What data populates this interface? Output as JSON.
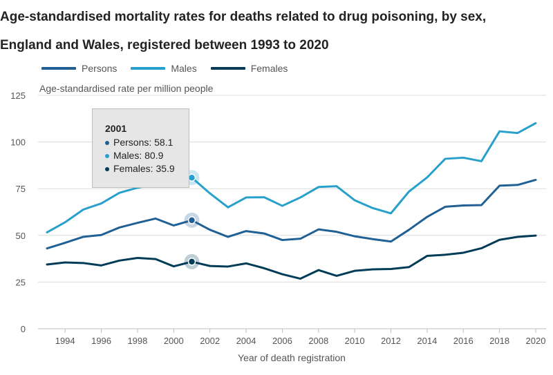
{
  "chart_data": {
    "type": "line",
    "title": "Age-standardised mortality rates for deaths related to drug poisoning, by sex, England and Wales, registered between 1993 to 2020",
    "ylabel": "Age-standardised rate per million people",
    "xlabel": "Year of death registration",
    "x": [
      1993,
      1994,
      1995,
      1996,
      1997,
      1998,
      1999,
      2000,
      2001,
      2002,
      2003,
      2004,
      2005,
      2006,
      2007,
      2008,
      2009,
      2010,
      2011,
      2012,
      2013,
      2014,
      2015,
      2016,
      2017,
      2018,
      2019,
      2020
    ],
    "xticks": [
      "1994",
      "1996",
      "1998",
      "2000",
      "2002",
      "2004",
      "2006",
      "2008",
      "2010",
      "2012",
      "2014",
      "2016",
      "2018",
      "2020"
    ],
    "yticks": [
      "0",
      "25",
      "50",
      "75",
      "100",
      "125"
    ],
    "xlim": [
      1993,
      2020
    ],
    "ylim": [
      0,
      125
    ],
    "grid": "horizontal",
    "legend_position": "top-left",
    "series": [
      {
        "name": "Persons",
        "color": "#206095",
        "values": [
          43.0,
          46.0,
          49.2,
          50.2,
          54.2,
          56.7,
          59.0,
          55.3,
          58.1,
          53.0,
          49.2,
          52.3,
          51.0,
          47.5,
          48.2,
          53.2,
          51.9,
          49.5,
          48.0,
          46.7,
          53.0,
          59.9,
          65.3,
          66.0,
          66.2,
          76.6,
          77.0,
          79.7
        ]
      },
      {
        "name": "Males",
        "color": "#27a0cc",
        "values": [
          51.6,
          57.0,
          63.8,
          67.1,
          72.8,
          75.5,
          77.5,
          78.5,
          80.9,
          72.5,
          65.0,
          70.3,
          70.4,
          65.8,
          70.3,
          75.9,
          76.3,
          68.8,
          64.6,
          61.8,
          73.5,
          81.0,
          91.0,
          91.6,
          89.7,
          105.7,
          104.8,
          110.1
        ]
      },
      {
        "name": "Females",
        "color": "#003c57",
        "values": [
          34.4,
          35.5,
          35.2,
          33.9,
          36.5,
          37.9,
          37.3,
          33.4,
          35.9,
          33.6,
          33.3,
          35.0,
          32.4,
          29.2,
          26.8,
          31.4,
          28.3,
          31.0,
          31.8,
          32.0,
          33.0,
          39.0,
          39.6,
          40.7,
          43.1,
          47.6,
          49.2,
          49.9
        ]
      }
    ],
    "highlight": {
      "year": "2001",
      "rows": [
        "Persons: 58.1",
        "Males: 80.9",
        "Females: 35.9"
      ],
      "index": 8
    }
  }
}
